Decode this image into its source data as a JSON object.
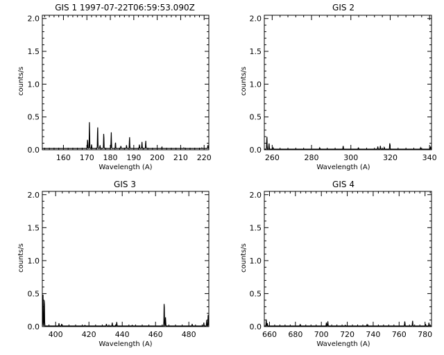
{
  "chart_data": [
    {
      "type": "line",
      "title": "GIS 1 1997-07-22T06:59:53.090Z",
      "xlabel": "Wavelength (A)",
      "ylabel": "counts/s",
      "xlim": [
        151,
        222
      ],
      "ylim": [
        0,
        2.05
      ],
      "xticks": [
        160,
        170,
        180,
        190,
        200,
        210,
        220
      ],
      "yticks": [
        0.0,
        0.5,
        1.0,
        1.5,
        2.0
      ],
      "ytick_labels": [
        "0.0",
        "0.5",
        "1.0",
        "1.5",
        "2.0"
      ],
      "baseline": 0.02,
      "peaks": [
        {
          "x": 170.3,
          "y": 0.16
        },
        {
          "x": 171.1,
          "y": 0.43
        },
        {
          "x": 172.0,
          "y": 0.08
        },
        {
          "x": 174.6,
          "y": 0.37
        },
        {
          "x": 175.6,
          "y": 0.07
        },
        {
          "x": 177.2,
          "y": 0.26
        },
        {
          "x": 180.4,
          "y": 0.27
        },
        {
          "x": 182.2,
          "y": 0.12
        },
        {
          "x": 184.5,
          "y": 0.06
        },
        {
          "x": 186.9,
          "y": 0.07
        },
        {
          "x": 188.2,
          "y": 0.2
        },
        {
          "x": 192.4,
          "y": 0.08
        },
        {
          "x": 193.5,
          "y": 0.12
        },
        {
          "x": 195.1,
          "y": 0.14
        },
        {
          "x": 202.0,
          "y": 0.04
        },
        {
          "x": 211.3,
          "y": 0.03
        },
        {
          "x": 219.0,
          "y": 0.03
        },
        {
          "x": 221.6,
          "y": 0.07
        }
      ]
    },
    {
      "type": "line",
      "title": "GIS 2",
      "xlabel": "Wavelength (A)",
      "ylabel": "counts/s",
      "xlim": [
        256,
        341
      ],
      "ylim": [
        0,
        2.05
      ],
      "xticks": [
        260,
        280,
        300,
        320,
        340
      ],
      "yticks": [
        0.0,
        0.5,
        1.0,
        1.5,
        2.0
      ],
      "ytick_labels": [
        "0.0",
        "0.5",
        "1.0",
        "1.5",
        "2.0"
      ],
      "baseline": 0.01,
      "peaks": [
        {
          "x": 257.3,
          "y": 0.21
        },
        {
          "x": 258.4,
          "y": 0.1
        },
        {
          "x": 260.5,
          "y": 0.03
        },
        {
          "x": 284.2,
          "y": 0.03
        },
        {
          "x": 296.1,
          "y": 0.06
        },
        {
          "x": 303.8,
          "y": 0.03
        },
        {
          "x": 313.7,
          "y": 0.05
        },
        {
          "x": 315.0,
          "y": 0.06
        },
        {
          "x": 317.0,
          "y": 0.04
        },
        {
          "x": 319.8,
          "y": 0.11
        },
        {
          "x": 335.4,
          "y": 0.03
        },
        {
          "x": 340.5,
          "y": 0.05
        }
      ]
    },
    {
      "type": "line",
      "title": "GIS 3",
      "xlabel": "Wavelength (A)",
      "ylabel": "counts/s",
      "xlim": [
        392,
        492
      ],
      "ylim": [
        0,
        2.05
      ],
      "xticks": [
        400,
        420,
        440,
        460,
        480
      ],
      "yticks": [
        0.0,
        0.5,
        1.0,
        1.5,
        2.0
      ],
      "ytick_labels": [
        "0.0",
        "0.5",
        "1.0",
        "1.5",
        "2.0"
      ],
      "baseline": 0.01,
      "peaks": [
        {
          "x": 392.4,
          "y": 0.5
        },
        {
          "x": 393.2,
          "y": 0.45
        },
        {
          "x": 402.0,
          "y": 0.05
        },
        {
          "x": 403.6,
          "y": 0.04
        },
        {
          "x": 417.6,
          "y": 0.02
        },
        {
          "x": 430.5,
          "y": 0.04
        },
        {
          "x": 434.0,
          "y": 0.06
        },
        {
          "x": 436.7,
          "y": 0.07
        },
        {
          "x": 446.0,
          "y": 0.02
        },
        {
          "x": 465.2,
          "y": 0.39
        },
        {
          "x": 466.0,
          "y": 0.14
        },
        {
          "x": 482.0,
          "y": 0.04
        },
        {
          "x": 489.0,
          "y": 0.06
        },
        {
          "x": 490.7,
          "y": 0.1
        },
        {
          "x": 491.6,
          "y": 0.18
        }
      ]
    },
    {
      "type": "line",
      "title": "GIS 4",
      "xlabel": "Wavelength (A)",
      "ylabel": "counts/s",
      "xlim": [
        656,
        785
      ],
      "ylim": [
        0,
        2.05
      ],
      "xticks": [
        660,
        680,
        700,
        720,
        740,
        760,
        780
      ],
      "yticks": [
        0.0,
        0.5,
        1.0,
        1.5,
        2.0
      ],
      "ytick_labels": [
        "0.0",
        "0.5",
        "1.0",
        "1.5",
        "2.0"
      ],
      "baseline": 0.01,
      "peaks": [
        {
          "x": 657.5,
          "y": 0.11
        },
        {
          "x": 658.4,
          "y": 0.05
        },
        {
          "x": 683.6,
          "y": 0.03
        },
        {
          "x": 703.9,
          "y": 0.06
        },
        {
          "x": 705.0,
          "y": 0.08
        },
        {
          "x": 718.5,
          "y": 0.02
        },
        {
          "x": 735.2,
          "y": 0.03
        },
        {
          "x": 764.4,
          "y": 0.08
        },
        {
          "x": 770.4,
          "y": 0.09
        },
        {
          "x": 780.4,
          "y": 0.04
        },
        {
          "x": 783.0,
          "y": 0.06
        }
      ]
    }
  ]
}
